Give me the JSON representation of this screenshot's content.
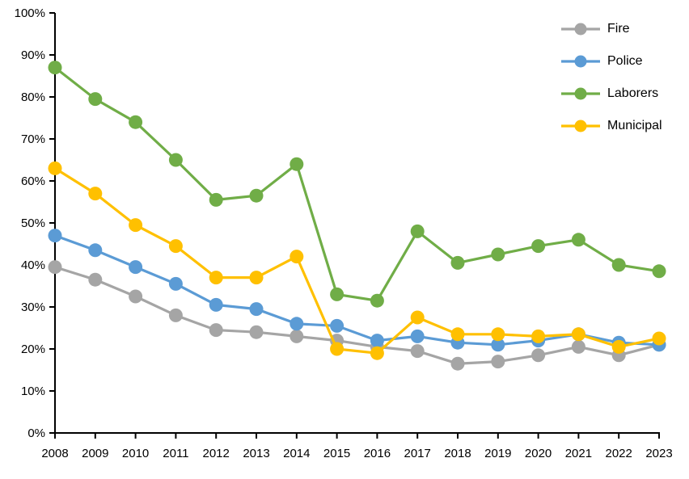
{
  "chart_data": {
    "type": "line",
    "title": "",
    "xlabel": "",
    "ylabel": "",
    "x": [
      "2008",
      "2009",
      "2010",
      "2011",
      "2012",
      "2013",
      "2014",
      "2015",
      "2016",
      "2017",
      "2018",
      "2019",
      "2020",
      "2021",
      "2022",
      "2023"
    ],
    "series": [
      {
        "name": "Fire",
        "color": "#A5A5A5",
        "values": [
          39.5,
          36.5,
          32.5,
          28,
          24.5,
          24,
          23,
          22,
          20.5,
          19.5,
          16.5,
          17,
          18.5,
          20.5,
          18.5,
          21
        ]
      },
      {
        "name": "Police",
        "color": "#5B9BD5",
        "values": [
          47,
          43.5,
          39.5,
          35.5,
          30.5,
          29.5,
          26,
          25.5,
          22,
          23,
          21.5,
          21,
          22,
          23.5,
          21.5,
          21
        ]
      },
      {
        "name": "Laborers",
        "color": "#70AD47",
        "values": [
          87,
          79.5,
          74,
          65,
          55.5,
          56.5,
          64,
          33,
          31.5,
          48,
          40.5,
          42.5,
          44.5,
          46,
          40,
          38.5
        ]
      },
      {
        "name": "Municipal",
        "color": "#FFC000",
        "values": [
          63,
          57,
          49.5,
          44.5,
          37,
          37,
          42,
          20,
          19,
          27.5,
          23.5,
          23.5,
          23,
          23.5,
          20.5,
          22.5
        ]
      }
    ],
    "ylim": [
      0,
      100
    ],
    "yticks": [
      0,
      10,
      20,
      30,
      40,
      50,
      60,
      70,
      80,
      90,
      100
    ],
    "ytick_suffix": "%",
    "grid": false,
    "legend_position": "top-right",
    "axis_color": "#000000",
    "marker": "circle"
  }
}
